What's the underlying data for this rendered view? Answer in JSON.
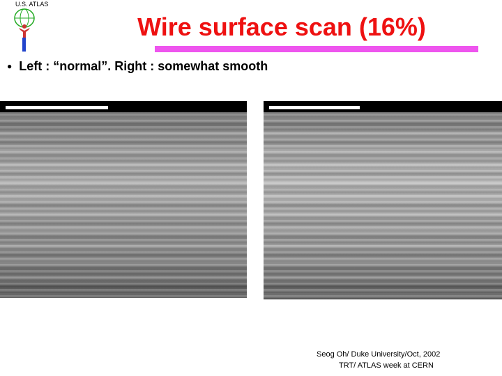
{
  "header": {
    "logo_text": "U.S. ATLAS",
    "title": "Wire surface scan (16%)"
  },
  "bullets": [
    "Left : “normal”. Right : somewhat smooth"
  ],
  "footer": {
    "line1": "Seog Oh/ Duke University/Oct, 2002",
    "line2": "TRT/ ATLAS week at CERN"
  }
}
